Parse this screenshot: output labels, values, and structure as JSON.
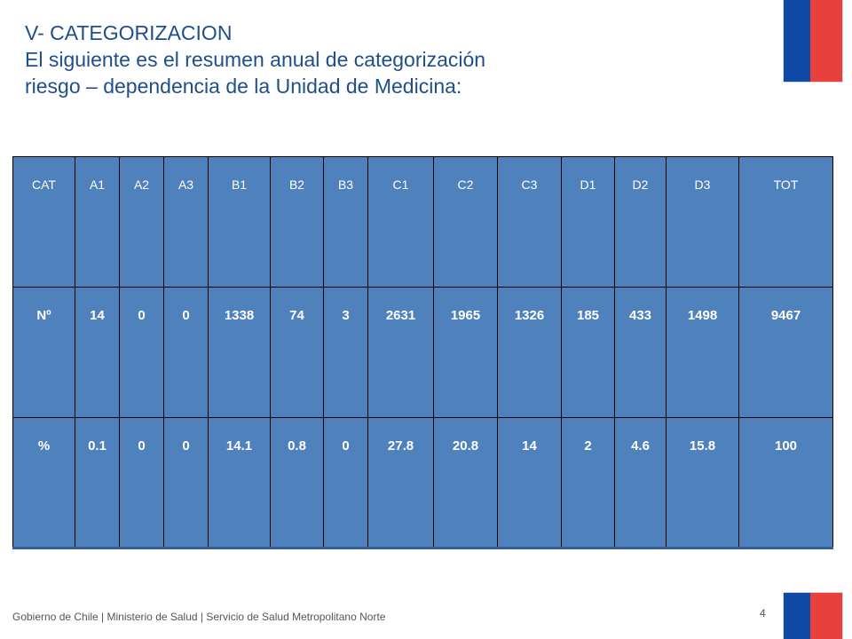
{
  "title": {
    "line1": "V-  CATEGORIZACION",
    "line2": "El  siguiente es el resumen anual de categorización",
    "line3": "riesgo – dependencia de la Unidad de Medicina:"
  },
  "table": {
    "headers": [
      "CAT",
      "A1",
      "A2",
      "A3",
      "B1",
      "B2",
      "B3",
      "C1",
      "C2",
      "C3",
      "D1",
      "D2",
      "D3",
      "TOT"
    ],
    "rows": [
      [
        "Nº",
        "14",
        "0",
        "0",
        "1338",
        "74",
        "3",
        "2631",
        "1965",
        "1326",
        "185",
        "433",
        "1498",
        "9467"
      ],
      [
        "%",
        "0.1",
        "0",
        "0",
        "14.1",
        "0.8",
        "0",
        "27.8",
        "20.8",
        "14",
        "2",
        "4.6",
        "15.8",
        "100"
      ]
    ]
  },
  "footer": {
    "text": "Gobierno de Chile | Ministerio de Salud | Servicio de Salud Metropolitano Norte",
    "page_number": "4"
  },
  "colors": {
    "table_fill": "#4f81bd",
    "title_text": "#1f4f8b",
    "flag_blue": "#0f4aa6",
    "flag_red": "#e8413d"
  }
}
